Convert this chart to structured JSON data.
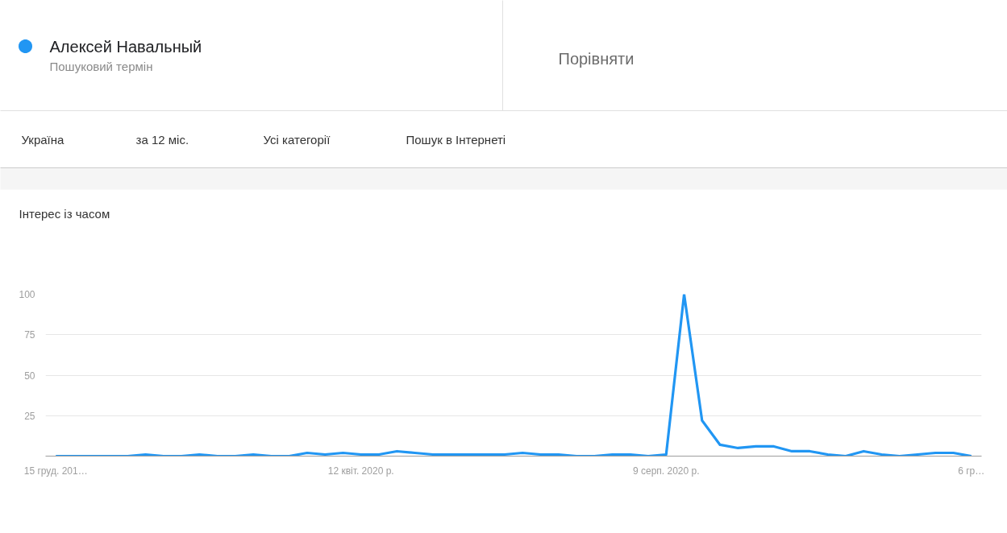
{
  "chart_data": {
    "type": "line",
    "title": "Інтерес із часом",
    "annotations": [
      "Пошуковий термін",
      "Порівняти",
      "Україна",
      "за 12 міс.",
      "Усі категорії",
      "Пошук в Інтернеті"
    ],
    "x": [
      "2019-12-15",
      "2019-12-22",
      "2019-12-29",
      "2020-01-05",
      "2020-01-12",
      "2020-01-19",
      "2020-01-26",
      "2020-02-02",
      "2020-02-09",
      "2020-02-16",
      "2020-02-23",
      "2020-03-01",
      "2020-03-08",
      "2020-03-15",
      "2020-03-22",
      "2020-03-29",
      "2020-04-05",
      "2020-04-12",
      "2020-04-19",
      "2020-04-26",
      "2020-05-03",
      "2020-05-10",
      "2020-05-17",
      "2020-05-24",
      "2020-05-31",
      "2020-06-07",
      "2020-06-14",
      "2020-06-21",
      "2020-06-28",
      "2020-07-05",
      "2020-07-12",
      "2020-07-19",
      "2020-07-26",
      "2020-08-02",
      "2020-08-09",
      "2020-08-16",
      "2020-08-23",
      "2020-08-30",
      "2020-09-06",
      "2020-09-13",
      "2020-09-20",
      "2020-09-27",
      "2020-10-04",
      "2020-10-11",
      "2020-10-18",
      "2020-10-25",
      "2020-11-01",
      "2020-11-08",
      "2020-11-15",
      "2020-11-22",
      "2020-11-29",
      "2020-12-06"
    ],
    "series": [
      {
        "name": "Алексей Навальный",
        "color": "#2196f3",
        "values": [
          0,
          0,
          0,
          0,
          0,
          1,
          0,
          0,
          1,
          0,
          0,
          1,
          0,
          0,
          2,
          1,
          2,
          1,
          1,
          3,
          2,
          1,
          1,
          1,
          1,
          1,
          2,
          1,
          1,
          0,
          0,
          1,
          1,
          0,
          1,
          100,
          22,
          7,
          5,
          6,
          6,
          3,
          3,
          1,
          0,
          3,
          1,
          0,
          1,
          2,
          2,
          0
        ]
      }
    ],
    "xlim": [
      "2019-12-11",
      "2020-12-10"
    ],
    "xticks": [
      {
        "value": "2019-12-15",
        "label": "15 груд. 201…"
      },
      {
        "value": "2020-04-12",
        "label": "12 квіт. 2020 р."
      },
      {
        "value": "2020-08-09",
        "label": "9 серп. 2020 р."
      },
      {
        "value": "2020-12-06",
        "label": "6 гр…"
      }
    ],
    "ylim": [
      0,
      100
    ],
    "yticks": [
      25,
      50,
      75,
      100
    ],
    "grid": "y",
    "legend": "top left",
    "line_style": "solid"
  }
}
